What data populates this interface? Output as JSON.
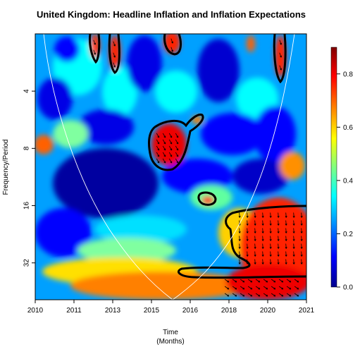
{
  "chart_data": {
    "type": "heatmap",
    "title": "United Kingdom: Headline Inflation and Inflation Expectations",
    "xlabel": "Time",
    "xlabel_sub": "(Months)",
    "ylabel": "Frequency/Period",
    "x_ticks": [
      "2010",
      "2011",
      "2013",
      "2015",
      "2016",
      "2018",
      "2020",
      "2021"
    ],
    "y_ticks": [
      "4",
      "8",
      "16",
      "32"
    ],
    "y_tick_values": [
      4,
      8,
      16,
      32
    ],
    "y_scale": "log2",
    "y_reversed": true,
    "period_range": [
      2,
      50
    ],
    "colorbar_ticks": [
      "0.0",
      "0.2",
      "0.4",
      "0.6",
      "0.8"
    ],
    "colorbar_tick_values": [
      0.0,
      0.2,
      0.4,
      0.6,
      0.8
    ],
    "colorbar_range": [
      0,
      0.9
    ],
    "colormap": [
      "#00008f",
      "#0000ff",
      "#00a0ff",
      "#00ffff",
      "#80ff80",
      "#ffff00",
      "#ff8000",
      "#ff0000",
      "#800000"
    ],
    "cone_of_influence": true,
    "legend_position": "right"
  }
}
